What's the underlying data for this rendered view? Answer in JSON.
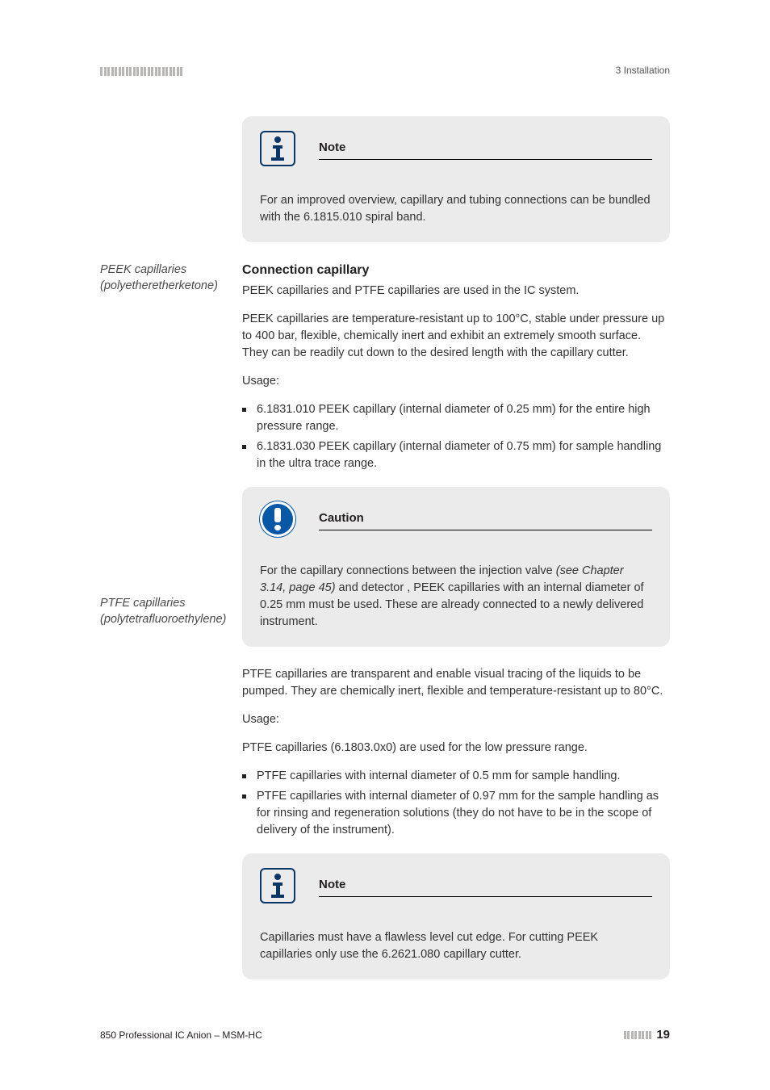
{
  "header": {
    "section_label": "3 Installation",
    "bar_count": 23,
    "bar_color": "#b9b6b6"
  },
  "note1": {
    "title": "Note",
    "body": "For an improved overview, capillary and tubing connections can be bundled with the 6.1815.010 spiral band."
  },
  "section": {
    "heading": "Connection capillary",
    "intro": "PEEK capillaries and PTFE capillaries are used in the IC system."
  },
  "peek": {
    "side_label": "PEEK capillaries (polyetheretherketone)",
    "desc": "PEEK capillaries are temperature-resistant up to 100°C, stable under pressure up to 400 bar, flexible, chemically inert and exhibit an extremely smooth surface. They can be readily cut down to the desired length with the capillary cutter.",
    "usage_label": "Usage:",
    "items": [
      "6.1831.010 PEEK capillary (internal diameter of 0.25 mm) for the entire high pressure range.",
      "6.1831.030 PEEK capillary (internal diameter of 0.75 mm) for sample handling in the ultra trace range."
    ]
  },
  "caution": {
    "title": "Caution",
    "body_pre": "For the capillary connections between the injection valve ",
    "body_ital": "(see Chapter 3.14, page 45)",
    "body_post": " and detector , PEEK capillaries with an internal diameter of 0.25 mm must be used. These are already connected to a newly delivered instrument."
  },
  "ptfe": {
    "side_label": "PTFE capillaries (polytetrafluoroethylene)",
    "desc": "PTFE capillaries are transparent and enable visual tracing of the liquids to be pumped. They are chemically inert, flexible and temperature-resistant up to 80°C.",
    "usage_label": "Usage:",
    "usage_line": "PTFE capillaries (6.1803.0x0) are used for the low pressure range.",
    "items": [
      "PTFE capillaries with internal diameter of 0.5 mm for sample handling.",
      "PTFE capillaries with internal diameter of 0.97 mm for the sample handling as for rinsing and regeneration solutions (they do not have to be in the scope of delivery of the instrument)."
    ]
  },
  "note2": {
    "title": "Note",
    "body": "Capillaries must have a flawless level cut edge. For cutting PEEK capillaries only use the 6.2621.080 capillary cutter."
  },
  "footer": {
    "doc_title": "850 Professional IC Anion – MSM-HC",
    "bar_count": 8,
    "page_number": "19"
  },
  "side_label_offsets": {
    "peek": 325,
    "ptfe": 738
  }
}
